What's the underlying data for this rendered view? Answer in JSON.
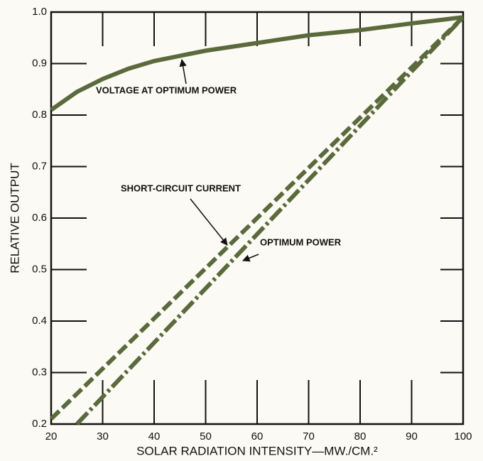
{
  "chart_data": {
    "type": "line",
    "xlabel": "SOLAR RADIATION INTENSITY—MW./CM.²",
    "ylabel": "RELATIVE OUTPUT",
    "xlim": [
      20,
      100
    ],
    "ylim": [
      0.2,
      1.0
    ],
    "xticks": [
      20,
      30,
      40,
      50,
      60,
      70,
      80,
      90,
      100
    ],
    "yticks": [
      0.2,
      0.3,
      0.4,
      0.5,
      0.6,
      0.7,
      0.8,
      0.9,
      {
        "value": 1.0,
        "label": "1.0"
      }
    ],
    "series": [
      {
        "name": "VOLTAGE AT OPTIMUM POWER",
        "color": "#5b6a3c",
        "style": "solid",
        "x": [
          20,
          25,
          30,
          35,
          40,
          50,
          60,
          70,
          80,
          90,
          100
        ],
        "values": [
          0.81,
          0.845,
          0.87,
          0.89,
          0.905,
          0.925,
          0.94,
          0.955,
          0.965,
          0.978,
          0.99
        ]
      },
      {
        "name": "SHORT-CIRCUIT CURRENT",
        "color": "#5b6a3c",
        "style": "dashed",
        "x": [
          20,
          100
        ],
        "values": [
          0.21,
          0.99
        ]
      },
      {
        "name": "OPTIMUM POWER",
        "color": "#5b6a3c",
        "style": "dashdot",
        "x": [
          25,
          100
        ],
        "values": [
          0.2,
          0.99
        ]
      }
    ]
  }
}
